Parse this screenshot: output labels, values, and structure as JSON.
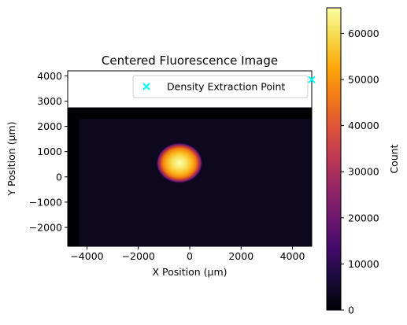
{
  "chart_data": [
    {
      "type": "heatmap",
      "title": "Centered Fluorescence Image",
      "xlabel": "X Position (µm)",
      "ylabel": "Y Position (µm)",
      "xlim": [
        -4750,
        4750
      ],
      "ylim": [
        -2750,
        4200
      ],
      "xticks": [
        -4000,
        -2000,
        0,
        2000,
        4000
      ],
      "yticks": [
        -2000,
        -1000,
        0,
        1000,
        2000,
        3000,
        4000
      ],
      "xtick_labels": [
        "−4000",
        "−2000",
        "0",
        "2000",
        "4000"
      ],
      "ytick_labels": [
        "−2000",
        "−1000",
        "0",
        "1000",
        "2000",
        "3000",
        "4000"
      ],
      "image_extent": {
        "x": [
          -4750,
          4750
        ],
        "y": [
          -2750,
          2750
        ]
      },
      "colormap": "inferno",
      "background_level": 7000,
      "spot": {
        "center": [
          -400,
          550
        ],
        "radius": [
          900,
          800
        ],
        "peak": 65500
      },
      "legend": {
        "label": "Density Extraction Point",
        "location": "upper right"
      },
      "marker": {
        "shape": "x",
        "color": "#00ffff",
        "x": 4750,
        "y": 3850
      },
      "grid": false
    },
    {
      "type": "colorbar",
      "label": "Count",
      "range": [
        0,
        65535
      ],
      "ticks": [
        0,
        10000,
        20000,
        30000,
        40000,
        50000,
        60000
      ],
      "tick_labels": [
        "0",
        "10000",
        "20000",
        "30000",
        "40000",
        "50000",
        "60000"
      ],
      "colormap": "inferno"
    }
  ]
}
